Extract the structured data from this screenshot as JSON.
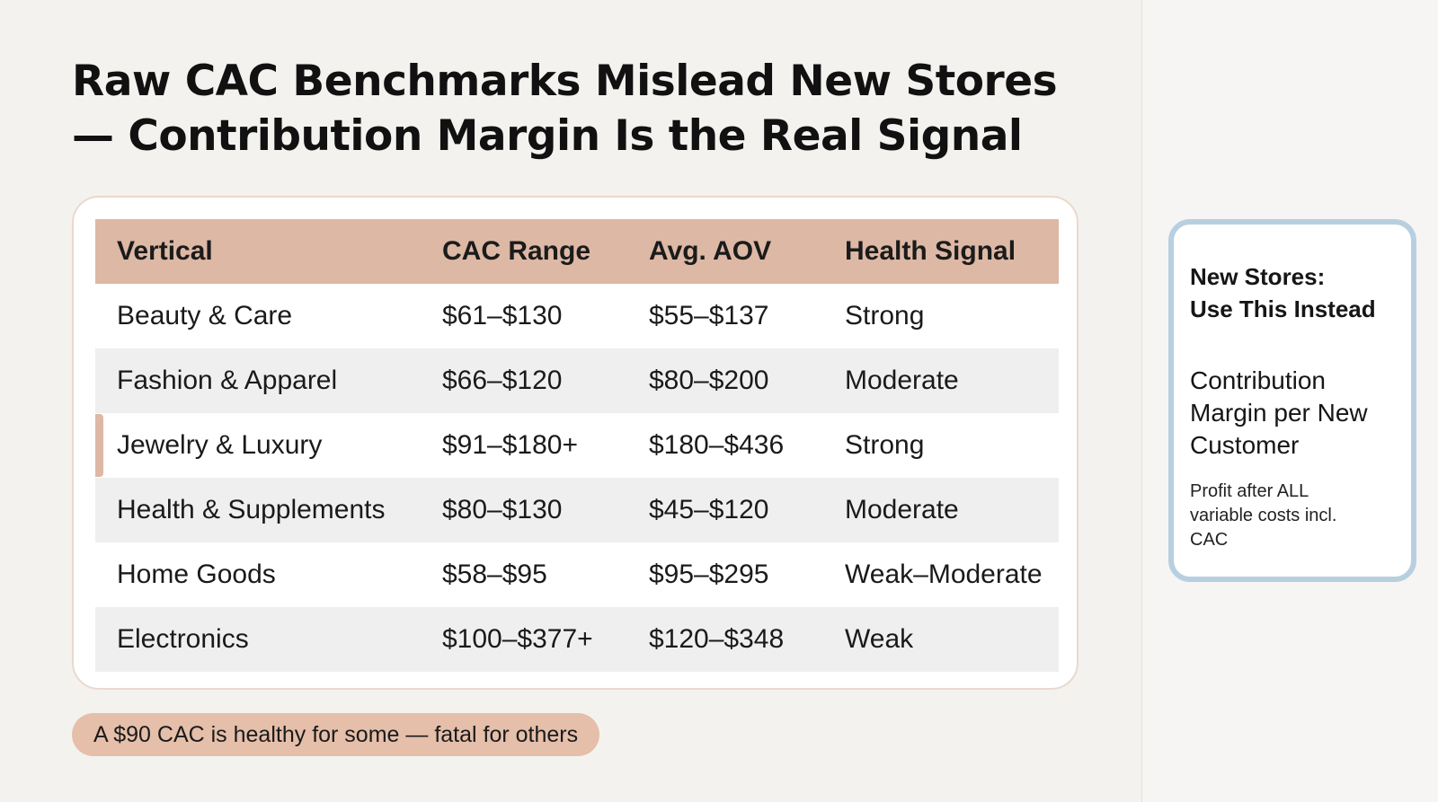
{
  "slide": {
    "title_line1": "Raw CAC Benchmarks Mislead New Stores",
    "title_line2": "— Contribution Margin Is the Real Signal"
  },
  "table": {
    "headers": [
      "Vertical",
      "CAC Range",
      "Avg. AOV",
      "Health Signal"
    ],
    "rows": [
      [
        "Beauty & Care",
        "$61–$130",
        "$55–$137",
        "Strong"
      ],
      [
        "Fashion & Apparel",
        "$66–$120",
        "$80–$200",
        "Moderate"
      ],
      [
        "Jewelry & Luxury",
        "$91–$180+",
        "$180–$436",
        "Strong"
      ],
      [
        "Health & Supplements",
        "$80–$130",
        "$45–$120",
        "Moderate"
      ],
      [
        "Home Goods",
        "$58–$95",
        "$95–$295",
        "Weak–Moderate"
      ],
      [
        "Electronics",
        "$100–$377+",
        "$120–$348",
        "Weak"
      ]
    ],
    "highlighted_row": "Jewelry & Luxury"
  },
  "callout": {
    "text": "A $90 CAC is healthy for some — fatal for others"
  },
  "sidebar": {
    "heading_line1": "New Stores:",
    "heading_line2": "Use This Instead",
    "metric_line1": "Contribution",
    "metric_line2": "Margin per New",
    "metric_line3": "Customer",
    "note_line1": "Profit after ALL",
    "note_line2": "variable costs incl.",
    "note_line3": "CAC"
  },
  "colors": {
    "background": "#f4f2ef",
    "accent_peach": "#ddb8a5",
    "accent_blue_border": "#b8cfe0",
    "alternate_row": "#efefef"
  }
}
